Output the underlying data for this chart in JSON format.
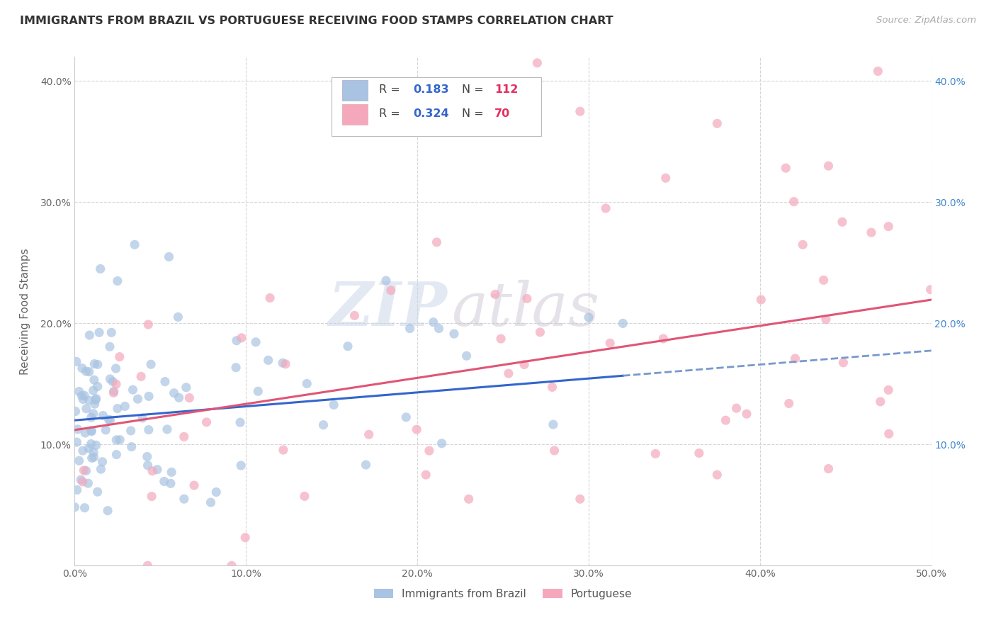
{
  "title": "IMMIGRANTS FROM BRAZIL VS PORTUGUESE RECEIVING FOOD STAMPS CORRELATION CHART",
  "source": "Source: ZipAtlas.com",
  "ylabel": "Receiving Food Stamps",
  "xlim": [
    0.0,
    0.5
  ],
  "ylim": [
    0.0,
    0.42
  ],
  "brazil_R": 0.183,
  "brazil_N": 112,
  "portuguese_R": 0.324,
  "portuguese_N": 70,
  "brazil_color": "#a8c4e2",
  "portuguese_color": "#f5a8bc",
  "brazil_line_color": "#3366cc",
  "portuguese_line_color": "#e05575",
  "legend_label_brazil": "Immigrants from Brazil",
  "legend_label_portuguese": "Portuguese",
  "watermark_zip": "ZIP",
  "watermark_atlas": "atlas",
  "background_color": "#ffffff",
  "grid_color": "#d5d5d5",
  "title_color": "#333333",
  "axis_label_color": "#666666",
  "right_ytick_color": "#4488cc",
  "seed": 7
}
